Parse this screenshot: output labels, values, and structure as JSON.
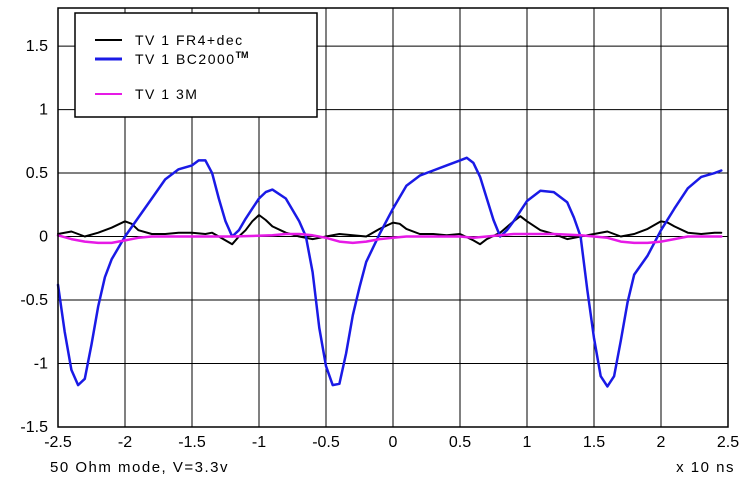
{
  "chart_data": {
    "type": "line",
    "xlabel": "x 10 ns",
    "caption": "50 Ohm mode, V=3.3v",
    "xlim": [
      -2.5,
      2.5
    ],
    "ylim": [
      -1.5,
      1.8
    ],
    "x_ticks": [
      -2.5,
      -2,
      -1.5,
      -1,
      -0.5,
      0,
      0.5,
      1,
      1.5,
      2,
      2.5
    ],
    "x_tick_labels": [
      "-2.5",
      "-2",
      "-1.5",
      "-1",
      "-0.5",
      "0",
      "0.5",
      "1",
      "1.5",
      "2",
      "2.5"
    ],
    "y_ticks": [
      -1.5,
      -1,
      -0.5,
      0,
      0.5,
      1,
      1.5
    ],
    "y_tick_labels": [
      "-1.5",
      "-1",
      "-0.5",
      "0",
      "0.5",
      "1",
      "1.5"
    ],
    "grid": true,
    "legend_position": "top-left",
    "legend": [
      {
        "label": "TV 1 FR4+dec",
        "superscript": "",
        "color": "#000000"
      },
      {
        "label": "TV 1 BC2000",
        "superscript": "TM",
        "color": "#1a1ae6"
      },
      {
        "label": "TV 1 3M",
        "superscript": "",
        "color": "#e61ae6"
      }
    ],
    "series": [
      {
        "name": "TV 1 FR4+dec",
        "color": "#000000",
        "x": [
          -2.5,
          -2.4,
          -2.3,
          -2.2,
          -2.1,
          -2.0,
          -1.95,
          -1.9,
          -1.8,
          -1.7,
          -1.6,
          -1.5,
          -1.4,
          -1.35,
          -1.3,
          -1.25,
          -1.2,
          -1.15,
          -1.1,
          -1.05,
          -1.0,
          -0.95,
          -0.9,
          -0.8,
          -0.7,
          -0.6,
          -0.5,
          -0.4,
          -0.3,
          -0.2,
          -0.1,
          0.0,
          0.05,
          0.1,
          0.2,
          0.3,
          0.4,
          0.5,
          0.6,
          0.65,
          0.7,
          0.8,
          0.9,
          0.95,
          1.0,
          1.1,
          1.2,
          1.3,
          1.4,
          1.5,
          1.6,
          1.7,
          1.8,
          1.9,
          2.0,
          2.05,
          2.1,
          2.2,
          2.3,
          2.4,
          2.45
        ],
        "y": [
          0.02,
          0.04,
          0.0,
          0.03,
          0.07,
          0.12,
          0.1,
          0.05,
          0.02,
          0.02,
          0.03,
          0.03,
          0.02,
          0.03,
          0.0,
          -0.03,
          -0.06,
          0.0,
          0.05,
          0.12,
          0.17,
          0.13,
          0.08,
          0.03,
          0.0,
          -0.02,
          0.0,
          0.02,
          0.01,
          0.0,
          0.06,
          0.11,
          0.1,
          0.06,
          0.02,
          0.02,
          0.01,
          0.02,
          -0.03,
          -0.06,
          -0.02,
          0.03,
          0.12,
          0.16,
          0.12,
          0.05,
          0.02,
          -0.02,
          0.0,
          0.02,
          0.04,
          0.0,
          0.02,
          0.06,
          0.12,
          0.11,
          0.08,
          0.03,
          0.02,
          0.03,
          0.03
        ]
      },
      {
        "name": "TV 1 BC2000",
        "color": "#1a1ae6",
        "x": [
          -2.5,
          -2.45,
          -2.4,
          -2.35,
          -2.3,
          -2.25,
          -2.2,
          -2.15,
          -2.1,
          -2.0,
          -1.9,
          -1.8,
          -1.7,
          -1.6,
          -1.5,
          -1.45,
          -1.4,
          -1.35,
          -1.3,
          -1.25,
          -1.2,
          -1.15,
          -1.1,
          -1.05,
          -1.0,
          -0.95,
          -0.9,
          -0.8,
          -0.7,
          -0.65,
          -0.6,
          -0.55,
          -0.5,
          -0.45,
          -0.4,
          -0.35,
          -0.3,
          -0.25,
          -0.2,
          -0.1,
          0.0,
          0.1,
          0.2,
          0.3,
          0.4,
          0.5,
          0.55,
          0.6,
          0.65,
          0.7,
          0.75,
          0.8,
          0.85,
          0.9,
          0.95,
          1.0,
          1.1,
          1.2,
          1.3,
          1.35,
          1.4,
          1.45,
          1.5,
          1.55,
          1.6,
          1.65,
          1.7,
          1.75,
          1.8,
          1.9,
          2.0,
          2.1,
          2.2,
          2.3,
          2.4,
          2.45
        ],
        "y": [
          -0.38,
          -0.75,
          -1.05,
          -1.17,
          -1.12,
          -0.85,
          -0.55,
          -0.32,
          -0.18,
          0.0,
          0.15,
          0.3,
          0.45,
          0.53,
          0.56,
          0.6,
          0.6,
          0.5,
          0.3,
          0.12,
          0.0,
          0.05,
          0.14,
          0.22,
          0.3,
          0.35,
          0.37,
          0.3,
          0.12,
          0.0,
          -0.28,
          -0.72,
          -1.02,
          -1.17,
          -1.16,
          -0.92,
          -0.62,
          -0.4,
          -0.2,
          0.02,
          0.22,
          0.4,
          0.48,
          0.52,
          0.56,
          0.6,
          0.62,
          0.58,
          0.47,
          0.3,
          0.13,
          0.0,
          0.05,
          0.12,
          0.2,
          0.28,
          0.36,
          0.35,
          0.27,
          0.15,
          0.0,
          -0.42,
          -0.8,
          -1.1,
          -1.18,
          -1.1,
          -0.82,
          -0.52,
          -0.3,
          -0.15,
          0.05,
          0.22,
          0.38,
          0.47,
          0.5,
          0.52
        ]
      },
      {
        "name": "TV 1 3M",
        "color": "#e61ae6",
        "x": [
          -2.5,
          -2.4,
          -2.3,
          -2.2,
          -2.1,
          -2.0,
          -1.9,
          -1.8,
          -1.5,
          -1.2,
          -0.9,
          -0.8,
          -0.7,
          -0.6,
          -0.5,
          -0.4,
          -0.3,
          -0.2,
          -0.1,
          0.0,
          0.1,
          0.2,
          0.3,
          0.4,
          0.5,
          0.6,
          0.7,
          0.8,
          0.9,
          1.0,
          1.2,
          1.4,
          1.6,
          1.7,
          1.8,
          1.9,
          2.0,
          2.1,
          2.2,
          2.3,
          2.4,
          2.45
        ],
        "y": [
          0.01,
          -0.02,
          -0.04,
          -0.05,
          -0.05,
          -0.03,
          -0.01,
          0.0,
          0.0,
          0.0,
          0.01,
          0.02,
          0.02,
          0.01,
          -0.01,
          -0.04,
          -0.05,
          -0.04,
          -0.02,
          -0.01,
          0.0,
          0.0,
          0.0,
          0.0,
          0.0,
          -0.01,
          0.0,
          0.01,
          0.02,
          0.02,
          0.02,
          0.01,
          -0.01,
          -0.04,
          -0.05,
          -0.05,
          -0.04,
          -0.02,
          0.0,
          0.0,
          0.0,
          0.0
        ]
      }
    ]
  }
}
